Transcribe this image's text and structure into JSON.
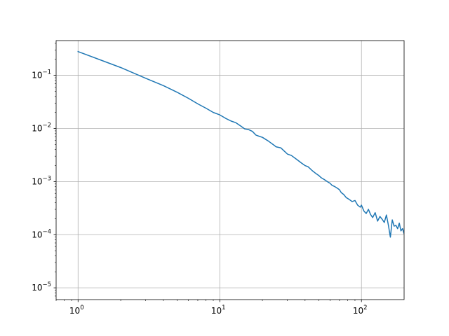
{
  "chart_data": {
    "type": "line",
    "title": "",
    "xlabel": "",
    "ylabel": "",
    "xscale": "log",
    "yscale": "log",
    "xlim": [
      0.7,
      200
    ],
    "ylim": [
      6e-06,
      0.45
    ],
    "grid": true,
    "x_ticks": [
      {
        "value": 1,
        "base": "10",
        "exp": "0"
      },
      {
        "value": 10,
        "base": "10",
        "exp": "1"
      },
      {
        "value": 100,
        "base": "10",
        "exp": "2"
      }
    ],
    "y_ticks": [
      {
        "value": 0.1,
        "base": "10",
        "exp": "−1"
      },
      {
        "value": 0.01,
        "base": "10",
        "exp": "−2"
      },
      {
        "value": 0.001,
        "base": "10",
        "exp": "−3"
      },
      {
        "value": 0.0001,
        "base": "10",
        "exp": "−4"
      },
      {
        "value": 1e-05,
        "base": "10",
        "exp": "−5"
      }
    ],
    "series": [
      {
        "color": "#1f77b4",
        "x": [
          1,
          2,
          3,
          4,
          5,
          6,
          7,
          8,
          9,
          10,
          11,
          12,
          13,
          14,
          15,
          16,
          17,
          18,
          19,
          20,
          22,
          24,
          25,
          27,
          29,
          30,
          32,
          35,
          38,
          40,
          42,
          45,
          48,
          50,
          52,
          55,
          58,
          60,
          62,
          65,
          68,
          70,
          72,
          75,
          78,
          80,
          83,
          86,
          90,
          94,
          98,
          100,
          104,
          108,
          112,
          116,
          120,
          125,
          130,
          135,
          140,
          145,
          150,
          155,
          160,
          165,
          170,
          175,
          180,
          185,
          190,
          195,
          200
        ],
        "y": [
          0.28,
          0.14,
          0.088,
          0.064,
          0.048,
          0.037,
          0.029,
          0.024,
          0.02,
          0.018,
          0.0155,
          0.0138,
          0.0128,
          0.0112,
          0.0098,
          0.0095,
          0.0088,
          0.0075,
          0.0071,
          0.0068,
          0.0058,
          0.0049,
          0.0045,
          0.0043,
          0.0036,
          0.0033,
          0.0031,
          0.0026,
          0.0022,
          0.002,
          0.0019,
          0.0016,
          0.0014,
          0.0013,
          0.00118,
          0.00108,
          0.00098,
          0.00093,
          0.00085,
          0.0008,
          0.00074,
          0.0007,
          0.00062,
          0.00057,
          0.0005,
          0.00048,
          0.00045,
          0.00042,
          0.00044,
          0.00036,
          0.00033,
          0.00036,
          0.00028,
          0.00025,
          0.0003,
          0.00024,
          0.00021,
          0.00026,
          0.00018,
          0.00022,
          0.000195,
          0.00017,
          0.000235,
          0.00015,
          9e-05,
          0.00019,
          0.000145,
          0.00015,
          0.00013,
          0.000165,
          0.000118,
          0.00013,
          0.000105
        ]
      }
    ]
  }
}
